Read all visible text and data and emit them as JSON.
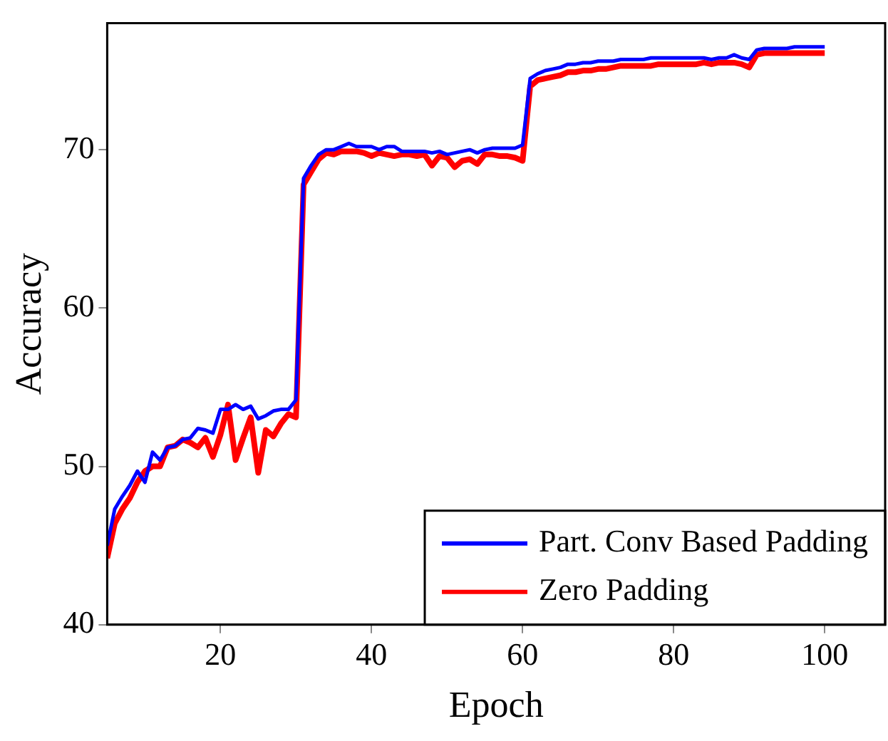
{
  "chart_data": {
    "type": "line",
    "xlabel": "Epoch",
    "ylabel": "Accuracy",
    "x": [
      5,
      6,
      7,
      8,
      9,
      10,
      11,
      12,
      13,
      14,
      15,
      16,
      17,
      18,
      19,
      20,
      21,
      22,
      23,
      24,
      25,
      26,
      27,
      28,
      29,
      30,
      31,
      32,
      33,
      34,
      35,
      36,
      37,
      38,
      39,
      40,
      41,
      42,
      43,
      44,
      45,
      46,
      47,
      48,
      49,
      50,
      51,
      52,
      53,
      54,
      55,
      56,
      57,
      58,
      59,
      60,
      61,
      62,
      63,
      64,
      65,
      66,
      67,
      68,
      69,
      70,
      71,
      72,
      73,
      74,
      75,
      76,
      77,
      78,
      79,
      80,
      81,
      82,
      83,
      84,
      85,
      86,
      87,
      88,
      89,
      90,
      91,
      92,
      93,
      94,
      95,
      96,
      97,
      98,
      99,
      100
    ],
    "series": [
      {
        "name": "Part. Conv Based Padding",
        "color": "#0000ff",
        "values": [
          45.0,
          47.3,
          48.1,
          48.8,
          49.7,
          49.0,
          50.9,
          50.4,
          51.2,
          51.3,
          51.7,
          51.8,
          52.4,
          52.3,
          52.1,
          53.6,
          53.6,
          53.9,
          53.6,
          53.8,
          53.0,
          53.2,
          53.5,
          53.6,
          53.6,
          54.2,
          68.2,
          69.0,
          69.7,
          70.0,
          70.0,
          70.2,
          70.4,
          70.2,
          70.2,
          70.2,
          70.0,
          70.2,
          70.2,
          69.9,
          69.9,
          69.9,
          69.9,
          69.8,
          69.9,
          69.7,
          69.8,
          69.9,
          70.0,
          69.8,
          70.0,
          70.1,
          70.1,
          70.1,
          70.1,
          70.3,
          74.5,
          74.8,
          75.0,
          75.1,
          75.2,
          75.4,
          75.4,
          75.5,
          75.5,
          75.6,
          75.6,
          75.6,
          75.7,
          75.7,
          75.7,
          75.7,
          75.8,
          75.8,
          75.8,
          75.8,
          75.8,
          75.8,
          75.8,
          75.8,
          75.7,
          75.8,
          75.8,
          76.0,
          75.8,
          75.7,
          76.3,
          76.4,
          76.4,
          76.4,
          76.4,
          76.5,
          76.5,
          76.5,
          76.5,
          76.5
        ]
      },
      {
        "name": "Zero Padding",
        "color": "#ff0000",
        "values": [
          44.2,
          46.4,
          47.3,
          48.0,
          49.0,
          49.7,
          50.0,
          50.0,
          51.2,
          51.3,
          51.7,
          51.5,
          51.2,
          51.8,
          50.6,
          52.0,
          53.9,
          50.4,
          51.8,
          53.1,
          49.6,
          52.3,
          51.9,
          52.7,
          53.3,
          53.1,
          67.8,
          68.6,
          69.4,
          69.8,
          69.7,
          69.9,
          69.9,
          69.9,
          69.8,
          69.6,
          69.8,
          69.7,
          69.6,
          69.7,
          69.7,
          69.6,
          69.7,
          69.0,
          69.6,
          69.5,
          68.9,
          69.3,
          69.4,
          69.1,
          69.7,
          69.7,
          69.6,
          69.6,
          69.5,
          69.3,
          74.0,
          74.4,
          74.5,
          74.6,
          74.7,
          74.9,
          74.9,
          75.0,
          75.0,
          75.1,
          75.1,
          75.2,
          75.3,
          75.3,
          75.3,
          75.3,
          75.3,
          75.4,
          75.4,
          75.4,
          75.4,
          75.4,
          75.4,
          75.5,
          75.4,
          75.5,
          75.5,
          75.5,
          75.4,
          75.2,
          76.0,
          76.1,
          76.1,
          76.1,
          76.1,
          76.1,
          76.1,
          76.1,
          76.1,
          76.1
        ]
      }
    ],
    "xlim": [
      5,
      108
    ],
    "xticks": [
      20,
      40,
      60,
      80,
      100
    ],
    "ylim": [
      40,
      78
    ],
    "yticks": [
      40,
      50,
      60,
      70
    ],
    "grid": false,
    "legend": "bottom right",
    "marker": "none",
    "line_style": "solid"
  }
}
